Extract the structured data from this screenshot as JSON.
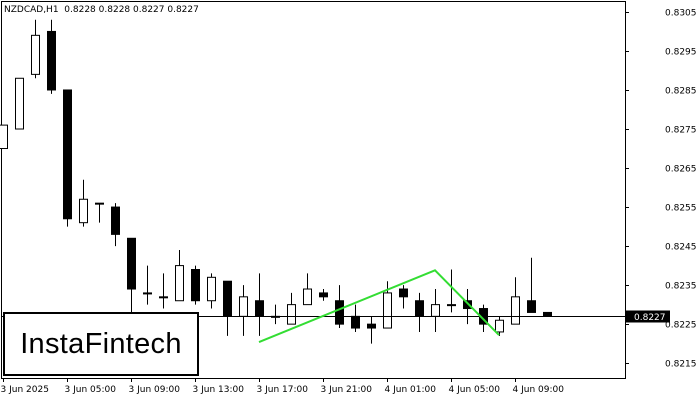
{
  "header": {
    "symbol": "NZDCAD,H1",
    "ohlc": "0.8228 0.8228 0.8227 0.8227"
  },
  "logo_text": "InstaFintech",
  "colors": {
    "background": "#ffffff",
    "candle": "#000000",
    "pattern": "#33dd33",
    "price_line": "#000000"
  },
  "chart_data": {
    "type": "candlestick",
    "title": "",
    "ylim": [
      0.82112,
      0.83078
    ],
    "y_ticks": [
      "0.8305",
      "0.8295",
      "0.8285",
      "0.8275",
      "0.8265",
      "0.8255",
      "0.8245",
      "0.8235",
      "0.8225",
      "0.8215"
    ],
    "x_ticks": [
      {
        "label": "3 Jun 2025",
        "index": 0
      },
      {
        "label": "3 Jun 05:00",
        "index": 4
      },
      {
        "label": "3 Jun 09:00",
        "index": 8
      },
      {
        "label": "3 Jun 13:00",
        "index": 12
      },
      {
        "label": "3 Jun 17:00",
        "index": 16
      },
      {
        "label": "3 Jun 21:00",
        "index": 20
      },
      {
        "label": "4 Jun 01:00",
        "index": 24
      },
      {
        "label": "4 Jun 05:00",
        "index": 28
      },
      {
        "label": "4 Jun 09:00",
        "index": 32
      }
    ],
    "current_price": "0.8227",
    "candles": [
      {
        "o": 0.827,
        "h": 0.8276,
        "l": 0.827,
        "c": 0.8276
      },
      {
        "o": 0.8275,
        "h": 0.8288,
        "l": 0.8275,
        "c": 0.8288
      },
      {
        "o": 0.8289,
        "h": 0.8303,
        "l": 0.8288,
        "c": 0.8299
      },
      {
        "o": 0.83,
        "h": 0.8303,
        "l": 0.8284,
        "c": 0.8285
      },
      {
        "o": 0.8285,
        "h": 0.8285,
        "l": 0.825,
        "c": 0.8252
      },
      {
        "o": 0.8251,
        "h": 0.8262,
        "l": 0.825,
        "c": 0.8257
      },
      {
        "o": 0.8256,
        "h": 0.8256,
        "l": 0.8251,
        "c": 0.8256
      },
      {
        "o": 0.8255,
        "h": 0.8256,
        "l": 0.8245,
        "c": 0.8248
      },
      {
        "o": 0.8247,
        "h": 0.8247,
        "l": 0.8224,
        "c": 0.8234
      },
      {
        "o": 0.8233,
        "h": 0.824,
        "l": 0.823,
        "c": 0.8233
      },
      {
        "o": 0.8232,
        "h": 0.8238,
        "l": 0.8229,
        "c": 0.8232
      },
      {
        "o": 0.8231,
        "h": 0.8244,
        "l": 0.8231,
        "c": 0.824
      },
      {
        "o": 0.8239,
        "h": 0.824,
        "l": 0.823,
        "c": 0.8231
      },
      {
        "o": 0.8231,
        "h": 0.8238,
        "l": 0.8229,
        "c": 0.8237
      },
      {
        "o": 0.8236,
        "h": 0.8236,
        "l": 0.8222,
        "c": 0.8227
      },
      {
        "o": 0.8227,
        "h": 0.8235,
        "l": 0.8222,
        "c": 0.8232
      },
      {
        "o": 0.8231,
        "h": 0.8238,
        "l": 0.8222,
        "c": 0.8227
      },
      {
        "o": 0.8227,
        "h": 0.823,
        "l": 0.8225,
        "c": 0.8227
      },
      {
        "o": 0.8225,
        "h": 0.8233,
        "l": 0.8225,
        "c": 0.823
      },
      {
        "o": 0.823,
        "h": 0.8238,
        "l": 0.823,
        "c": 0.8234
      },
      {
        "o": 0.8233,
        "h": 0.8234,
        "l": 0.8231,
        "c": 0.8232
      },
      {
        "o": 0.8231,
        "h": 0.8235,
        "l": 0.8224,
        "c": 0.8225
      },
      {
        "o": 0.8227,
        "h": 0.823,
        "l": 0.8223,
        "c": 0.8224
      },
      {
        "o": 0.8225,
        "h": 0.8227,
        "l": 0.822,
        "c": 0.8224
      },
      {
        "o": 0.8224,
        "h": 0.8236,
        "l": 0.8224,
        "c": 0.8233
      },
      {
        "o": 0.8234,
        "h": 0.8235,
        "l": 0.8229,
        "c": 0.8232
      },
      {
        "o": 0.8231,
        "h": 0.8233,
        "l": 0.8223,
        "c": 0.8227
      },
      {
        "o": 0.8227,
        "h": 0.8234,
        "l": 0.8223,
        "c": 0.823
      },
      {
        "o": 0.823,
        "h": 0.8239,
        "l": 0.8228,
        "c": 0.823
      },
      {
        "o": 0.8231,
        "h": 0.8234,
        "l": 0.8225,
        "c": 0.8229
      },
      {
        "o": 0.8229,
        "h": 0.823,
        "l": 0.8223,
        "c": 0.8225
      },
      {
        "o": 0.8223,
        "h": 0.8227,
        "l": 0.8222,
        "c": 0.8226
      },
      {
        "o": 0.8225,
        "h": 0.8237,
        "l": 0.8225,
        "c": 0.8232
      },
      {
        "o": 0.8231,
        "h": 0.8242,
        "l": 0.8228,
        "c": 0.8228
      },
      {
        "o": 0.8228,
        "h": 0.8228,
        "l": 0.8227,
        "c": 0.8227
      }
    ],
    "pattern": [
      {
        "index": 16,
        "price": 0.82204
      },
      {
        "index": 27,
        "price": 0.82388
      },
      {
        "index": 31,
        "price": 0.82222
      }
    ]
  }
}
